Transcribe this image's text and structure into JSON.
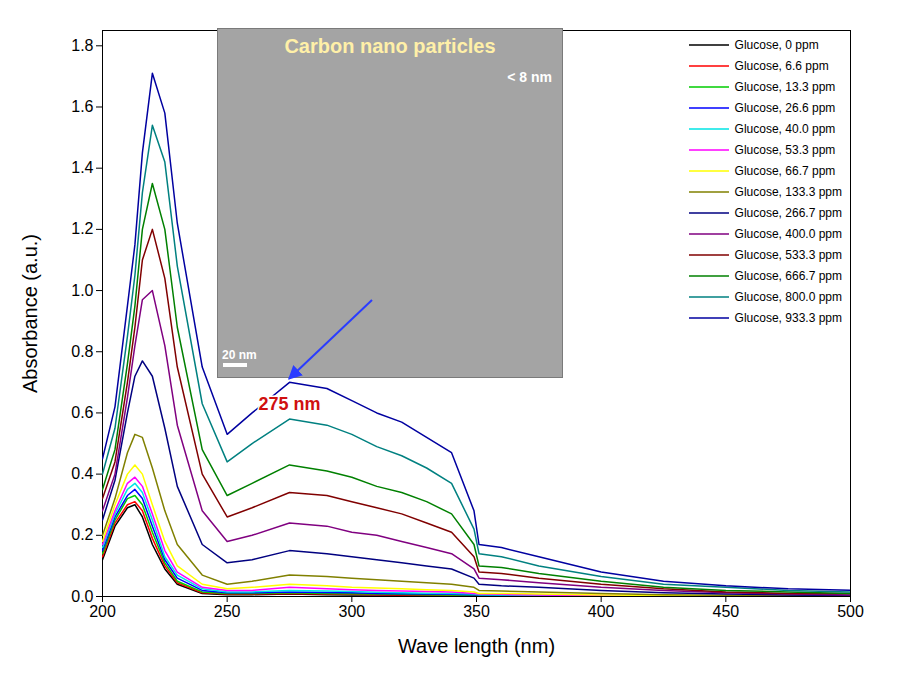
{
  "chart_data": {
    "type": "line",
    "x_label": "Wave length (nm)",
    "y_label": "Absorbance (a.u.)",
    "x": [
      200,
      205,
      210,
      213,
      216,
      220,
      225,
      230,
      240,
      250,
      260,
      275,
      290,
      300,
      310,
      320,
      330,
      340,
      349,
      351,
      360,
      375,
      400,
      425,
      450,
      475,
      500
    ],
    "xlim": [
      200,
      500
    ],
    "xticks": [
      200,
      250,
      300,
      350,
      400,
      450,
      500
    ],
    "ylim": [
      0,
      1.85
    ],
    "yticks": [
      {
        "value": 0,
        "label": "0.0"
      },
      {
        "value": 0.2,
        "label": "0.2"
      },
      {
        "value": 0.4,
        "label": "0.4"
      },
      {
        "value": 0.6,
        "label": "0.6"
      },
      {
        "value": 0.8,
        "label": "0.8"
      },
      {
        "value": 1,
        "label": "1.0"
      },
      {
        "value": 1.2,
        "label": "1.2"
      },
      {
        "value": 1.4,
        "label": "1.4"
      },
      {
        "value": 1.6,
        "label": "1.6"
      },
      {
        "value": 1.8,
        "label": "1.8"
      }
    ],
    "legend": "top-right",
    "series": [
      {
        "name": "Glucose, 0 ppm",
        "color": "#000000",
        "values": [
          0.12,
          0.23,
          0.29,
          0.3,
          0.26,
          0.17,
          0.09,
          0.04,
          0.01,
          0.006,
          0.006,
          0.008,
          0.006,
          0.005,
          0.005,
          0.004,
          0.004,
          0.003,
          0.002,
          0.002,
          0.002,
          0.001,
          0.001,
          0,
          0,
          0,
          0
        ]
      },
      {
        "name": "Glucose, 6.6 ppm",
        "color": "#ff0000",
        "values": [
          0.13,
          0.24,
          0.3,
          0.31,
          0.28,
          0.19,
          0.1,
          0.045,
          0.012,
          0.008,
          0.008,
          0.01,
          0.008,
          0.007,
          0.006,
          0.005,
          0.005,
          0.004,
          0.003,
          0.003,
          0.002,
          0.002,
          0.001,
          0,
          0,
          0,
          0
        ]
      },
      {
        "name": "Glucose, 13.3 ppm",
        "color": "#00cc00",
        "values": [
          0.14,
          0.25,
          0.32,
          0.33,
          0.3,
          0.21,
          0.11,
          0.05,
          0.015,
          0.01,
          0.01,
          0.012,
          0.01,
          0.009,
          0.008,
          0.007,
          0.006,
          0.005,
          0.004,
          0.004,
          0.003,
          0.002,
          0.001,
          0,
          0,
          0,
          0
        ]
      },
      {
        "name": "Glucose, 26.6 ppm",
        "color": "#0000ff",
        "values": [
          0.15,
          0.26,
          0.33,
          0.35,
          0.32,
          0.23,
          0.12,
          0.06,
          0.02,
          0.012,
          0.012,
          0.015,
          0.013,
          0.012,
          0.01,
          0.009,
          0.008,
          0.007,
          0.006,
          0.005,
          0.004,
          0.003,
          0.002,
          0.001,
          0,
          0,
          0
        ]
      },
      {
        "name": "Glucose, 40.0 ppm",
        "color": "#00e5e5",
        "values": [
          0.16,
          0.27,
          0.35,
          0.37,
          0.34,
          0.25,
          0.13,
          0.07,
          0.025,
          0.015,
          0.015,
          0.02,
          0.018,
          0.016,
          0.014,
          0.012,
          0.011,
          0.01,
          0.008,
          0.006,
          0.005,
          0.004,
          0.002,
          0.001,
          0,
          0,
          0
        ]
      },
      {
        "name": "Glucose, 53.3 ppm",
        "color": "#ff00ff",
        "values": [
          0.17,
          0.28,
          0.37,
          0.39,
          0.36,
          0.27,
          0.15,
          0.08,
          0.03,
          0.02,
          0.02,
          0.03,
          0.025,
          0.022,
          0.02,
          0.018,
          0.016,
          0.015,
          0.01,
          0.008,
          0.007,
          0.005,
          0.003,
          0.002,
          0.001,
          0,
          0
        ]
      },
      {
        "name": "Glucose, 66.7 ppm",
        "color": "#ffff00",
        "values": [
          0.18,
          0.3,
          0.4,
          0.43,
          0.4,
          0.3,
          0.18,
          0.1,
          0.04,
          0.025,
          0.03,
          0.04,
          0.035,
          0.03,
          0.028,
          0.025,
          0.022,
          0.02,
          0.015,
          0.01,
          0.01,
          0.008,
          0.005,
          0.003,
          0.002,
          0.001,
          0
        ]
      },
      {
        "name": "Glucose, 133.3 ppm",
        "color": "#808000",
        "values": [
          0.2,
          0.32,
          0.47,
          0.53,
          0.52,
          0.42,
          0.28,
          0.17,
          0.07,
          0.04,
          0.05,
          0.07,
          0.065,
          0.06,
          0.055,
          0.05,
          0.045,
          0.04,
          0.03,
          0.02,
          0.018,
          0.015,
          0.01,
          0.006,
          0.004,
          0.002,
          0.001
        ]
      },
      {
        "name": "Glucose, 266.7 ppm",
        "color": "#000080",
        "values": [
          0.25,
          0.38,
          0.6,
          0.72,
          0.77,
          0.72,
          0.55,
          0.36,
          0.17,
          0.11,
          0.12,
          0.15,
          0.14,
          0.13,
          0.12,
          0.11,
          0.1,
          0.09,
          0.06,
          0.04,
          0.035,
          0.03,
          0.02,
          0.012,
          0.008,
          0.005,
          0.003
        ]
      },
      {
        "name": "Glucose, 400.0 ppm",
        "color": "#800080",
        "values": [
          0.28,
          0.4,
          0.65,
          0.82,
          0.97,
          1.0,
          0.82,
          0.56,
          0.28,
          0.18,
          0.2,
          0.24,
          0.23,
          0.21,
          0.2,
          0.18,
          0.16,
          0.14,
          0.09,
          0.06,
          0.055,
          0.045,
          0.03,
          0.02,
          0.012,
          0.008,
          0.005
        ]
      },
      {
        "name": "Glucose, 533.3 ppm",
        "color": "#800000",
        "values": [
          0.32,
          0.44,
          0.7,
          0.88,
          1.1,
          1.2,
          1.04,
          0.75,
          0.4,
          0.26,
          0.29,
          0.34,
          0.33,
          0.31,
          0.29,
          0.27,
          0.24,
          0.21,
          0.13,
          0.08,
          0.075,
          0.06,
          0.04,
          0.025,
          0.015,
          0.01,
          0.01
        ]
      },
      {
        "name": "Glucose, 666.7 ppm",
        "color": "#008000",
        "values": [
          0.35,
          0.48,
          0.76,
          0.95,
          1.2,
          1.35,
          1.2,
          0.88,
          0.48,
          0.33,
          0.37,
          0.43,
          0.41,
          0.39,
          0.36,
          0.34,
          0.31,
          0.27,
          0.17,
          0.1,
          0.095,
          0.075,
          0.05,
          0.03,
          0.02,
          0.015,
          0.01
        ]
      },
      {
        "name": "Glucose, 800.0 ppm",
        "color": "#008080",
        "values": [
          0.4,
          0.55,
          0.85,
          1.05,
          1.32,
          1.54,
          1.42,
          1.08,
          0.63,
          0.44,
          0.5,
          0.58,
          0.56,
          0.53,
          0.49,
          0.46,
          0.42,
          0.37,
          0.22,
          0.14,
          0.13,
          0.1,
          0.065,
          0.04,
          0.03,
          0.02,
          0.015
        ]
      },
      {
        "name": "Glucose, 933.3 ppm",
        "color": "#0000a0",
        "values": [
          0.45,
          0.62,
          0.95,
          1.15,
          1.45,
          1.71,
          1.58,
          1.22,
          0.75,
          0.53,
          0.6,
          0.7,
          0.68,
          0.64,
          0.6,
          0.57,
          0.52,
          0.47,
          0.28,
          0.17,
          0.16,
          0.13,
          0.08,
          0.05,
          0.035,
          0.025,
          0.02
        ]
      }
    ],
    "annotations": [
      {
        "text": "275 nm",
        "x": 275,
        "y": 0.63,
        "color": "#d01010"
      }
    ],
    "inset": {
      "title": "Carbon nano particles",
      "note": "< 8 nm",
      "scale_bar": "20 nm"
    }
  }
}
